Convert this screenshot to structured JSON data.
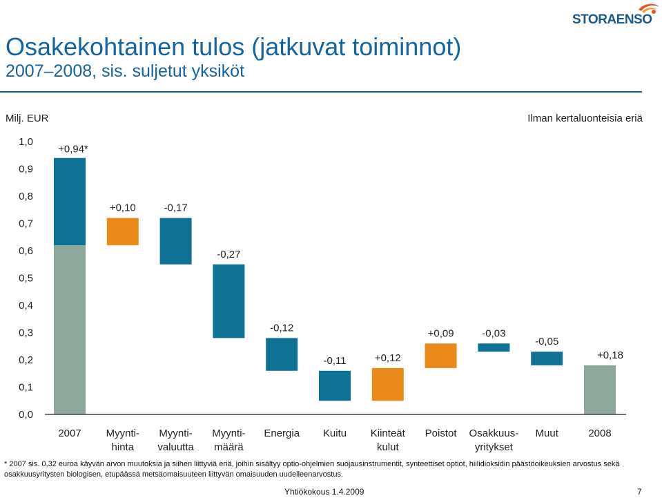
{
  "header": {
    "title": "Osakekohtainen tulos (jatkuvat toiminnot)",
    "subtitle": "2007–2008, sis. suljetut yksiköt",
    "logo_text": "STORAENSO",
    "unit": "Milj. EUR",
    "note": "Ilman kertaluonteisia eriä"
  },
  "colors": {
    "title": "#1464a0",
    "base": "#8fa89c",
    "eps": "#0f7295",
    "negative": "#0f7295",
    "positive": "#eb8a1a",
    "rule": "#1a5a8c"
  },
  "chart_data": {
    "type": "waterfall",
    "ylim": [
      0,
      1.0
    ],
    "yticks": [
      "0,0",
      "0,1",
      "0,2",
      "0,3",
      "0,4",
      "0,5",
      "0,6",
      "0,7",
      "0,8",
      "0,9",
      "1,0"
    ],
    "categories": [
      [
        "2007"
      ],
      [
        "Myynti-",
        "hinta"
      ],
      [
        "Myynti-",
        "valuutta"
      ],
      [
        "Myynti-",
        "määrä"
      ],
      [
        "Energia"
      ],
      [
        "Kuitu"
      ],
      [
        "Kiinteät",
        "kulut"
      ],
      [
        "Poistot"
      ],
      [
        "Osakkuus-",
        "yritykset"
      ],
      [
        "Muut"
      ],
      [
        "2008"
      ]
    ],
    "bars": [
      {
        "label": "+0,94*",
        "kind": "total",
        "from": 0.0,
        "to": 0.94,
        "split": 0.62
      },
      {
        "label": "+0,10",
        "kind": "positive",
        "from": 0.62,
        "to": 0.72
      },
      {
        "label": "-0,17",
        "kind": "negative",
        "from": 0.72,
        "to": 0.55
      },
      {
        "label": "-0,27",
        "kind": "negative",
        "from": 0.55,
        "to": 0.28
      },
      {
        "label": "-0,12",
        "kind": "negative",
        "from": 0.28,
        "to": 0.16
      },
      {
        "label": "-0,11",
        "kind": "negative",
        "from": 0.16,
        "to": 0.05
      },
      {
        "label": "+0,12",
        "kind": "positive",
        "from": 0.05,
        "to": 0.17
      },
      {
        "label": "+0,09",
        "kind": "positive",
        "from": 0.17,
        "to": 0.26
      },
      {
        "label": "-0,03",
        "kind": "negative",
        "from": 0.26,
        "to": 0.23
      },
      {
        "label": "-0,05",
        "kind": "negative",
        "from": 0.23,
        "to": 0.18
      },
      {
        "label": "+0,18",
        "kind": "total",
        "from": 0.0,
        "to": 0.18
      }
    ]
  },
  "footnote": "* 2007 sis. 0,32 euroa käyvän arvon muutoksia ja siihen liittyviä eriä, joihin sisältyy optio-ohjelmien suojausinstrumentit, synteettiset optiot, hiilidioksidin päästöoikeuksien arvostus sekä osakkuusyritysten biologisen, etupäässä metsäomaisuuteen liittyvän omaisuuden uudelleenarvostus.",
  "footer": {
    "event": "Yhtiökokous 1.4.2009",
    "page": "7"
  }
}
